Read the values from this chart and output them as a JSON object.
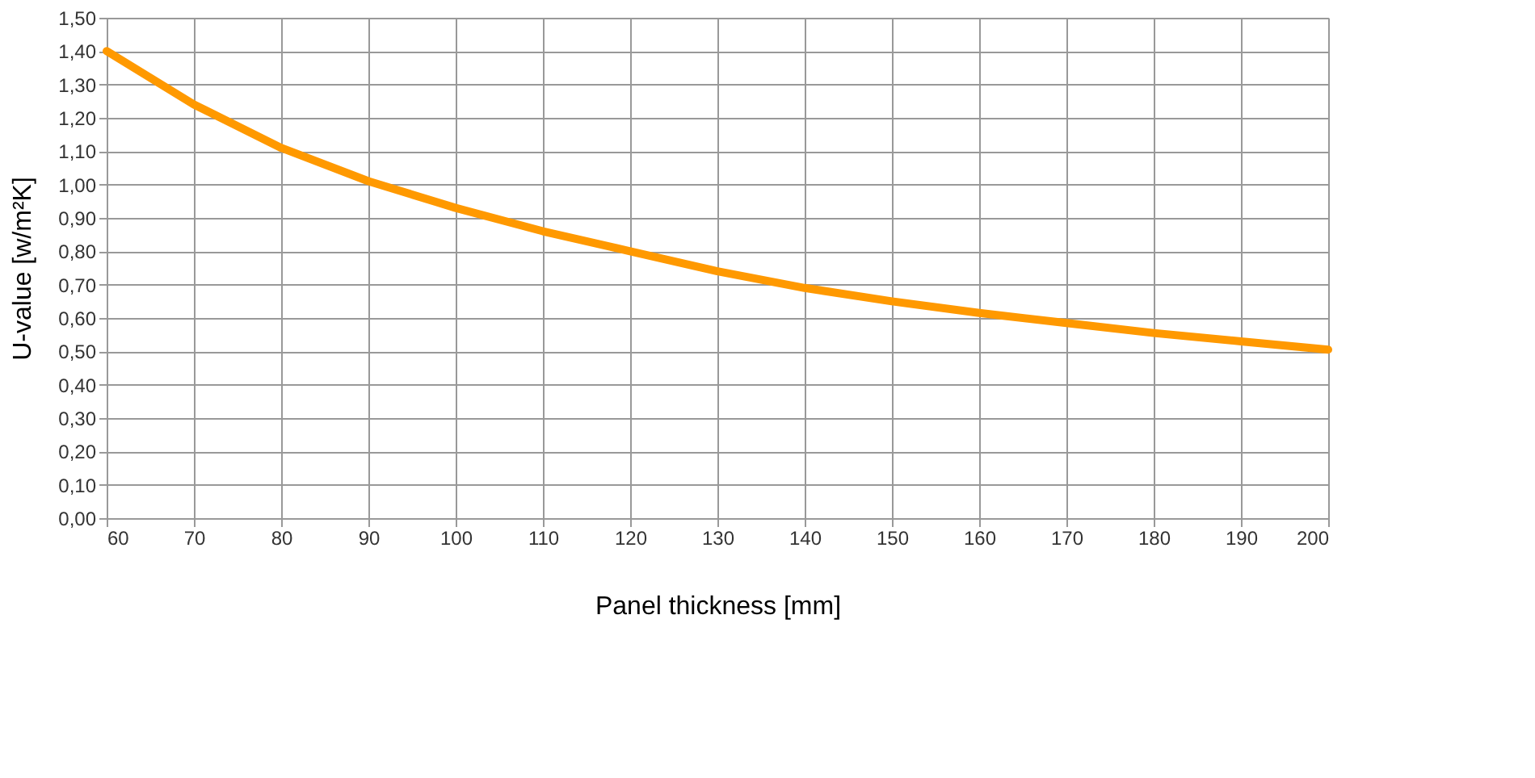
{
  "chart_data": {
    "type": "line",
    "xlabel": "Panel thickness [mm]",
    "ylabel": "U-value [w/m²K]",
    "x": [
      60,
      70,
      80,
      90,
      100,
      110,
      120,
      130,
      140,
      150,
      160,
      170,
      180,
      190,
      200
    ],
    "series": [
      {
        "color": "#ff9900",
        "values": [
          1.4,
          1.24,
          1.11,
          1.01,
          0.93,
          0.86,
          0.8,
          0.74,
          0.69,
          0.65,
          0.615,
          0.585,
          0.555,
          0.53,
          0.505
        ]
      }
    ],
    "xlim": [
      60,
      200
    ],
    "xticks": [
      60,
      70,
      80,
      90,
      100,
      110,
      120,
      130,
      140,
      150,
      160,
      170,
      180,
      190,
      200
    ],
    "ylim": [
      0,
      1.5
    ],
    "yticks": [
      {
        "value": 0,
        "label": "0,00"
      },
      {
        "value": 0.1,
        "label": "0,10"
      },
      {
        "value": 0.2,
        "label": "0,20"
      },
      {
        "value": 0.3,
        "label": "0,30"
      },
      {
        "value": 0.4,
        "label": "0,40"
      },
      {
        "value": 0.5,
        "label": "0,50"
      },
      {
        "value": 0.6,
        "label": "0,60"
      },
      {
        "value": 0.7,
        "label": "0,70"
      },
      {
        "value": 0.8,
        "label": "0,80"
      },
      {
        "value": 0.9,
        "label": "0,90"
      },
      {
        "value": 1.0,
        "label": "1,00"
      },
      {
        "value": 1.1,
        "label": "1,10"
      },
      {
        "value": 1.2,
        "label": "1,20"
      },
      {
        "value": 1.3,
        "label": "1,30"
      },
      {
        "value": 1.4,
        "label": "1,40"
      },
      {
        "value": 1.5,
        "label": "1,50"
      }
    ],
    "grid": true,
    "line_style": "solid",
    "marker": "none",
    "legend": false
  }
}
